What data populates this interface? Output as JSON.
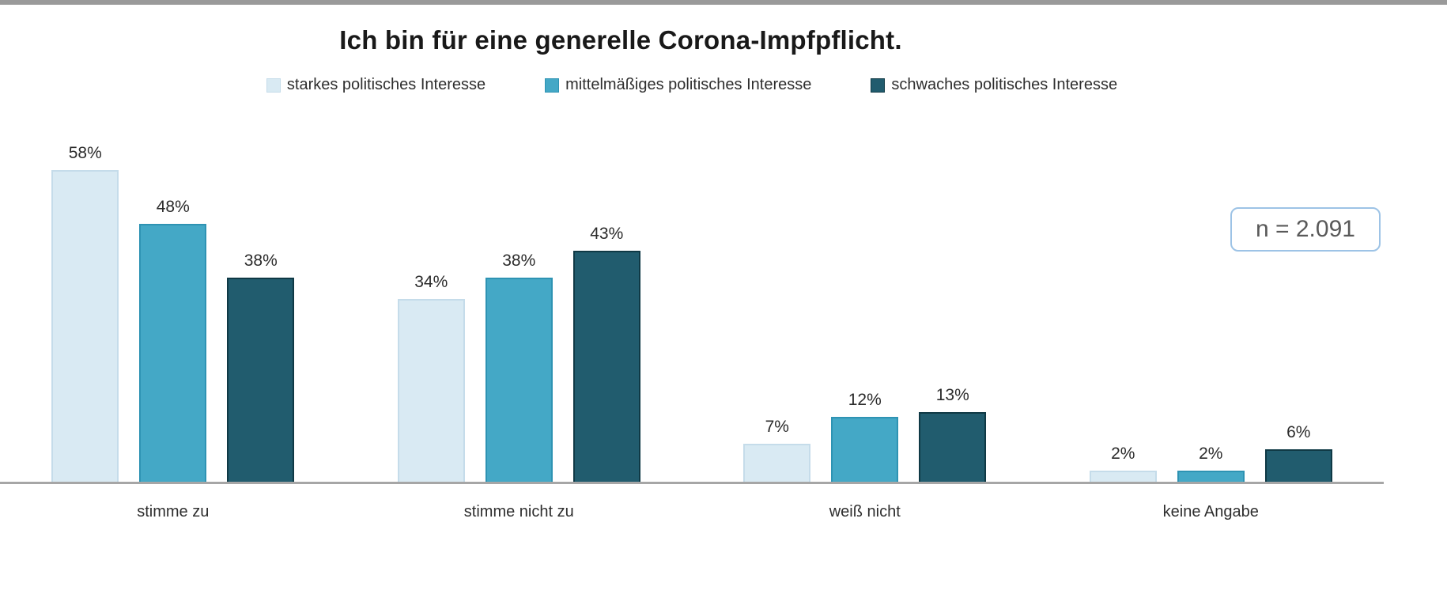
{
  "chart_data": {
    "type": "bar",
    "title": "Ich bin für eine generelle Corona-Impfpflicht.",
    "categories": [
      "stimme zu",
      "stimme nicht zu",
      "weiß nicht",
      "keine Angabe"
    ],
    "series": [
      {
        "name": "starkes politisches Interesse",
        "color": "#d9eaf3",
        "border_color": "#c5dcea",
        "values": [
          58,
          34,
          7,
          2
        ]
      },
      {
        "name": "mittelmäßiges politisches Interesse",
        "color": "#44a8c6",
        "border_color": "#2e93b3",
        "values": [
          48,
          38,
          12,
          2
        ]
      },
      {
        "name": "schwaches politisches Interesse",
        "color": "#215c6e",
        "border_color": "#0f3945",
        "values": [
          38,
          43,
          13,
          6
        ]
      }
    ],
    "value_suffix": "%",
    "annotation": "n = 2.091",
    "ylim": [
      0,
      60
    ],
    "grid": false,
    "legend_position": "top",
    "baseline_color": "#a6a6a6",
    "top_strip_color": "#9a9a9a"
  }
}
